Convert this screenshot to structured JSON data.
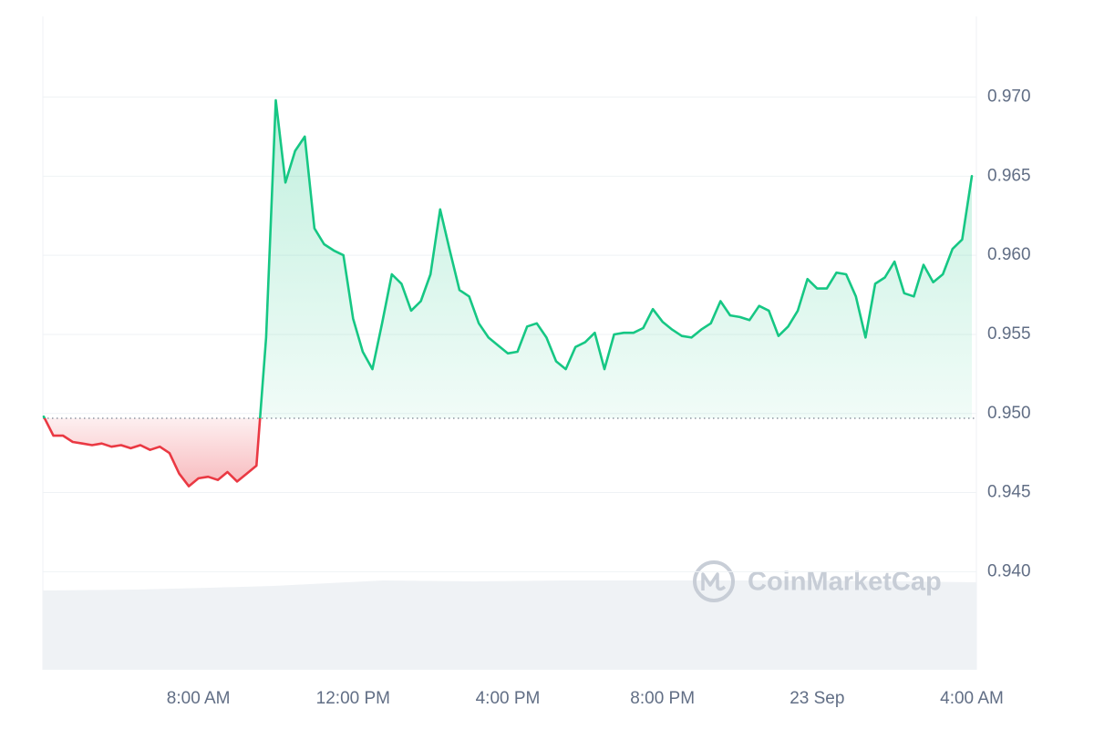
{
  "chart_data": {
    "type": "line",
    "watermark": "CoinMarketCap",
    "categories": [
      null,
      null,
      null,
      null,
      null,
      null,
      null,
      null,
      null,
      null,
      null,
      null,
      null,
      null,
      null,
      null,
      "8:00 AM",
      null,
      null,
      null,
      null,
      null,
      null,
      null,
      null,
      null,
      null,
      null,
      null,
      null,
      null,
      null,
      "12:00 PM",
      null,
      null,
      null,
      null,
      null,
      null,
      null,
      null,
      null,
      null,
      null,
      null,
      null,
      null,
      null,
      "4:00 PM",
      null,
      null,
      null,
      null,
      null,
      null,
      null,
      null,
      null,
      null,
      null,
      null,
      null,
      null,
      null,
      "8:00 PM",
      null,
      null,
      null,
      null,
      null,
      null,
      null,
      null,
      null,
      null,
      null,
      null,
      null,
      null,
      null,
      "23 Sep",
      null,
      null,
      null,
      null,
      null,
      null,
      null,
      null,
      null,
      null,
      null,
      null,
      null,
      null,
      null,
      "4:00 AM"
    ],
    "values": [
      0.9498,
      0.9486,
      0.9486,
      0.9482,
      0.9481,
      0.948,
      0.9481,
      0.9479,
      0.948,
      0.9478,
      0.948,
      0.9477,
      0.9479,
      0.9475,
      0.9462,
      0.9454,
      0.9459,
      0.946,
      0.9458,
      0.9463,
      0.9457,
      0.9462,
      0.9467,
      0.9548,
      0.9698,
      0.9646,
      0.9666,
      0.9675,
      0.9617,
      0.9607,
      0.9603,
      0.96,
      0.956,
      0.9539,
      0.9528,
      0.9557,
      0.9588,
      0.9582,
      0.9565,
      0.9571,
      0.9588,
      0.9629,
      0.9603,
      0.9578,
      0.9574,
      0.9557,
      0.9548,
      0.9543,
      0.9538,
      0.9539,
      0.9555,
      0.9557,
      0.9548,
      0.9533,
      0.9528,
      0.9542,
      0.9545,
      0.9551,
      0.9528,
      0.955,
      0.9551,
      0.9551,
      0.9554,
      0.9566,
      0.9558,
      0.9553,
      0.9549,
      0.9548,
      0.9553,
      0.9557,
      0.9571,
      0.9562,
      0.9561,
      0.9559,
      0.9568,
      0.9565,
      0.9549,
      0.9555,
      0.9565,
      0.9585,
      0.9579,
      0.9579,
      0.9589,
      0.9588,
      0.9574,
      0.9548,
      0.9582,
      0.9586,
      0.9596,
      0.9576,
      0.9574,
      0.9594,
      0.9583,
      0.9588,
      0.9604,
      0.961,
      0.965
    ],
    "baseline": 0.9497,
    "up_color": "#16c784",
    "down_color": "#ea3943",
    "ylim": [
      0.9338,
      0.9751
    ],
    "yticks": [
      {
        "value": 0.94,
        "label": "0.940"
      },
      0.945,
      {
        "value": 0.95,
        "label": "0.950"
      },
      0.955,
      {
        "value": 0.96,
        "label": "0.960"
      },
      0.965,
      {
        "value": 0.97,
        "label": "0.970"
      }
    ],
    "grid": true
  }
}
